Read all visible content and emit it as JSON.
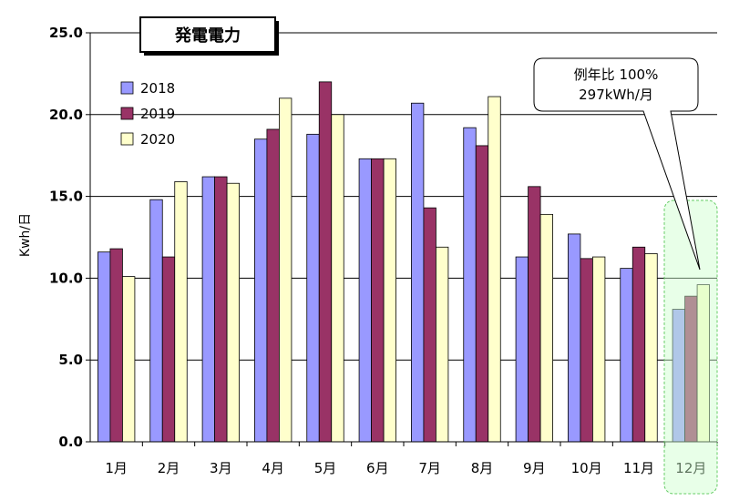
{
  "chart_data": {
    "type": "bar",
    "title": "発電電力",
    "ylabel": "Kwh/日",
    "xlabel": "",
    "ylim": [
      0,
      25
    ],
    "yticks": [
      "0.0",
      "5.0",
      "10.0",
      "15.0",
      "20.0",
      "25.0"
    ],
    "grid": true,
    "legend_position": "top-left",
    "categories": [
      "1月",
      "2月",
      "3月",
      "4月",
      "5月",
      "6月",
      "7月",
      "8月",
      "9月",
      "10月",
      "11月",
      "12月"
    ],
    "series": [
      {
        "name": "2018",
        "color": "#9999ff",
        "values": [
          11.6,
          14.8,
          16.2,
          18.5,
          18.8,
          17.3,
          20.7,
          19.2,
          11.3,
          12.7,
          10.6,
          8.1
        ]
      },
      {
        "name": "2019",
        "color": "#993366",
        "values": [
          11.8,
          11.3,
          16.2,
          19.1,
          22.0,
          17.3,
          14.3,
          18.1,
          15.6,
          11.2,
          11.9,
          8.9
        ]
      },
      {
        "name": "2020",
        "color": "#ffffcc",
        "values": [
          10.1,
          15.9,
          15.8,
          21.0,
          20.0,
          17.3,
          11.9,
          21.1,
          13.9,
          11.3,
          11.5,
          9.6
        ]
      }
    ],
    "annotation": {
      "line1": "例年比 100%",
      "line2": "297kWh/月"
    }
  }
}
